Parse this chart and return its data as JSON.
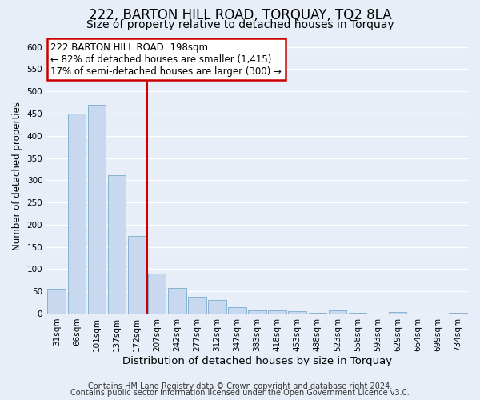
{
  "title": "222, BARTON HILL ROAD, TORQUAY, TQ2 8LA",
  "subtitle": "Size of property relative to detached houses in Torquay",
  "xlabel": "Distribution of detached houses by size in Torquay",
  "ylabel": "Number of detached properties",
  "categories": [
    "31sqm",
    "66sqm",
    "101sqm",
    "137sqm",
    "172sqm",
    "207sqm",
    "242sqm",
    "277sqm",
    "312sqm",
    "347sqm",
    "383sqm",
    "418sqm",
    "453sqm",
    "488sqm",
    "523sqm",
    "558sqm",
    "593sqm",
    "629sqm",
    "664sqm",
    "699sqm",
    "734sqm"
  ],
  "values": [
    55,
    450,
    470,
    312,
    175,
    90,
    57,
    38,
    30,
    15,
    7,
    8,
    5,
    2,
    8,
    2,
    0,
    3,
    0,
    0,
    2
  ],
  "bar_color": "#c8d8ee",
  "bar_edge_color": "#7aaace",
  "annotation_title": "222 BARTON HILL ROAD: 198sqm",
  "annotation_line1": "← 82% of detached houses are smaller (1,415)",
  "annotation_line2": "17% of semi-detached houses are larger (300) →",
  "annotation_box_color": "#ffffff",
  "annotation_box_edge": "#cc0000",
  "vline_color": "#cc0000",
  "vline_x": 4.5,
  "ylim": [
    0,
    620
  ],
  "yticks": [
    0,
    50,
    100,
    150,
    200,
    250,
    300,
    350,
    400,
    450,
    500,
    550,
    600
  ],
  "footer1": "Contains HM Land Registry data © Crown copyright and database right 2024.",
  "footer2": "Contains public sector information licensed under the Open Government Licence v3.0.",
  "background_color": "#e8eef8",
  "plot_bg_color": "#e8eef8",
  "grid_color": "#ffffff",
  "title_fontsize": 12,
  "subtitle_fontsize": 10,
  "xlabel_fontsize": 9.5,
  "ylabel_fontsize": 8.5,
  "tick_fontsize": 7.5,
  "annotation_fontsize": 8.5,
  "footer_fontsize": 7
}
